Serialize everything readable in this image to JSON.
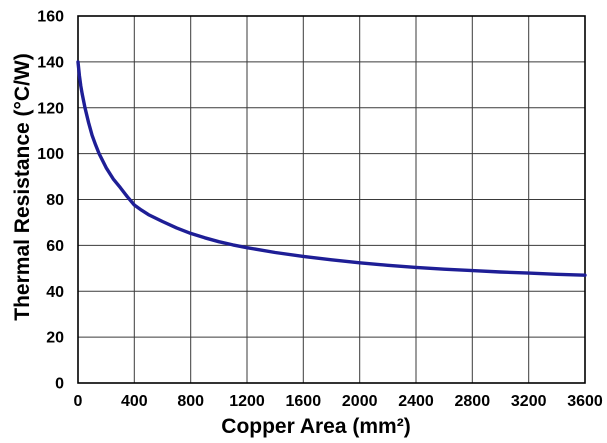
{
  "chart_data": {
    "type": "line",
    "title": "",
    "xlabel": "Copper Area (mm²)",
    "ylabel": "Thermal Resistance (°C/W)",
    "xlim": [
      0,
      3600
    ],
    "ylim": [
      0,
      160
    ],
    "x_ticks": [
      0,
      400,
      800,
      1200,
      1600,
      2000,
      2400,
      2800,
      3200,
      3600
    ],
    "y_ticks": [
      0,
      20,
      40,
      60,
      80,
      100,
      120,
      140,
      160
    ],
    "grid": true,
    "legend_position": "none",
    "series": [
      {
        "name": "thermal-resistance-curve",
        "color": "#1e1e96",
        "points": [
          [
            0,
            140
          ],
          [
            10,
            134
          ],
          [
            20,
            129.5
          ],
          [
            30,
            126
          ],
          [
            50,
            120
          ],
          [
            75,
            113.5
          ],
          [
            100,
            108
          ],
          [
            125,
            103.8
          ],
          [
            150,
            100
          ],
          [
            200,
            93.8
          ],
          [
            250,
            89
          ],
          [
            300,
            85.2
          ],
          [
            350,
            81.2
          ],
          [
            400,
            77.6
          ],
          [
            450,
            75.4
          ],
          [
            500,
            73.4
          ],
          [
            600,
            70.4
          ],
          [
            700,
            67.6
          ],
          [
            800,
            65.2
          ],
          [
            900,
            63.3
          ],
          [
            1000,
            61.6
          ],
          [
            1100,
            60.2
          ],
          [
            1200,
            59
          ],
          [
            1400,
            56.9
          ],
          [
            1600,
            55.2
          ],
          [
            1800,
            53.7
          ],
          [
            2000,
            52.4
          ],
          [
            2200,
            51.3
          ],
          [
            2400,
            50.4
          ],
          [
            2600,
            49.6
          ],
          [
            2800,
            49
          ],
          [
            3000,
            48.4
          ],
          [
            3200,
            47.9
          ],
          [
            3400,
            47.4
          ],
          [
            3600,
            47
          ]
        ]
      }
    ]
  },
  "styles": {
    "background": "#ffffff",
    "grid_color": "#3a3a3a",
    "border_color": "#000000",
    "text_color": "#000000",
    "curve_color": "#1e1e96"
  }
}
